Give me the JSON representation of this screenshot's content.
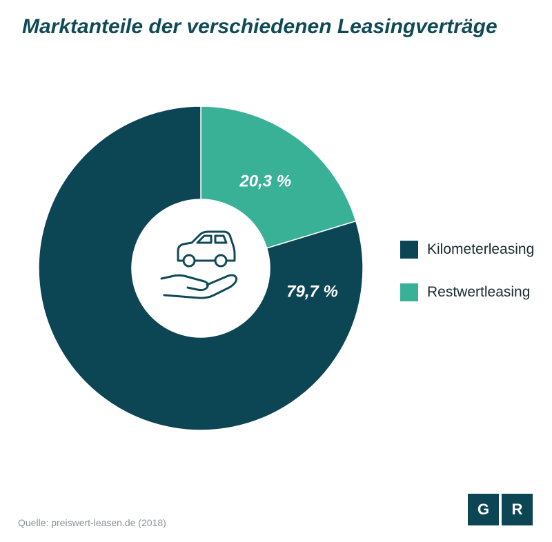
{
  "title": "Marktanteile der verschiedenen Leasingverträge",
  "chart_data": {
    "type": "pie",
    "title": "Marktanteile der verschiedenen Leasingverträge",
    "style": "donut",
    "series": [
      {
        "name": "Kilometerleasing",
        "value": 79.7,
        "label": "79,7 %",
        "color": "#0c4654"
      },
      {
        "name": "Restwertleasing",
        "value": 20.3,
        "label": "20,3 %",
        "color": "#39b197"
      }
    ],
    "legend_position": "right",
    "center_icon": "car-on-hand-icon"
  },
  "source": "Quelle: preiswert-leasen.de (2018)",
  "logo": {
    "letters": [
      "G",
      "R"
    ],
    "color": "#0c4654"
  }
}
